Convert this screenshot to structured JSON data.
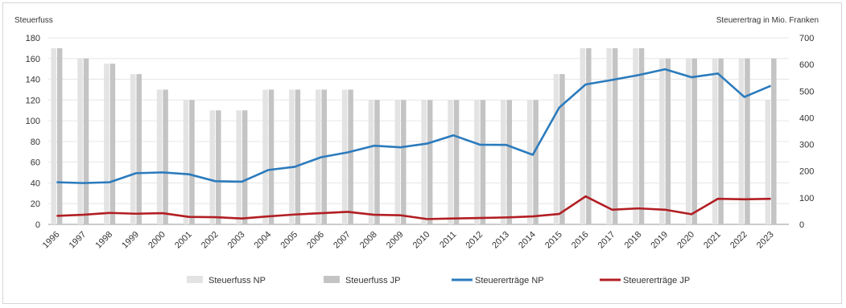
{
  "chart_data": {
    "type": "bar",
    "categories": [
      "1996",
      "1997",
      "1998",
      "1999",
      "2000",
      "2001",
      "2002",
      "2003",
      "2004",
      "2005",
      "2006",
      "2007",
      "2008",
      "2009",
      "2010",
      "2011",
      "2012",
      "2013",
      "2014",
      "2015",
      "2016",
      "2017",
      "2018",
      "2019",
      "2020",
      "2021",
      "2022",
      "2023"
    ],
    "ylabel": "Steuerfuss",
    "y2label": "Steuerertrag in Mio. Franken",
    "ylim": [
      0,
      180
    ],
    "y2lim": [
      0,
      700
    ],
    "yticks": [
      "0",
      "20",
      "40",
      "60",
      "80",
      "100",
      "120",
      "140",
      "160",
      "180"
    ],
    "y2ticks": [
      "0",
      "100",
      "200",
      "300",
      "400",
      "500",
      "600",
      "700"
    ],
    "grid": true,
    "legend_position": "bottom",
    "series": [
      {
        "name": "Steuerfuss NP",
        "type": "bar",
        "axis": "left",
        "color": "#e3e3e3",
        "values": [
          170,
          160,
          155,
          145,
          130,
          120,
          110,
          110,
          130,
          130,
          130,
          130,
          120,
          120,
          120,
          120,
          120,
          120,
          120,
          145,
          170,
          170,
          170,
          160,
          160,
          160,
          160,
          120
        ]
      },
      {
        "name": "Steuerfuss JP",
        "type": "bar",
        "axis": "left",
        "color": "#c4c4c4",
        "values": [
          170,
          160,
          155,
          145,
          130,
          120,
          110,
          110,
          130,
          130,
          130,
          130,
          120,
          120,
          120,
          120,
          120,
          120,
          120,
          145,
          170,
          170,
          170,
          160,
          160,
          160,
          160,
          160
        ]
      },
      {
        "name": "Steuererträge NP",
        "type": "line",
        "axis": "right",
        "color": "#2b7bbd",
        "values": [
          158,
          155,
          158,
          192,
          195,
          188,
          162,
          160,
          204,
          216,
          252,
          270,
          295,
          289,
          303,
          334,
          299,
          298,
          261,
          438,
          525,
          542,
          560,
          582,
          552,
          566,
          478,
          520
        ]
      },
      {
        "name": "Steuererträge JP",
        "type": "line",
        "axis": "right",
        "color": "#b21e23",
        "values": [
          32,
          36,
          43,
          40,
          42,
          28,
          27,
          22,
          30,
          37,
          42,
          47,
          36,
          34,
          20,
          22,
          24,
          26,
          30,
          39,
          105,
          55,
          60,
          55,
          38,
          96,
          94,
          96
        ]
      }
    ]
  }
}
